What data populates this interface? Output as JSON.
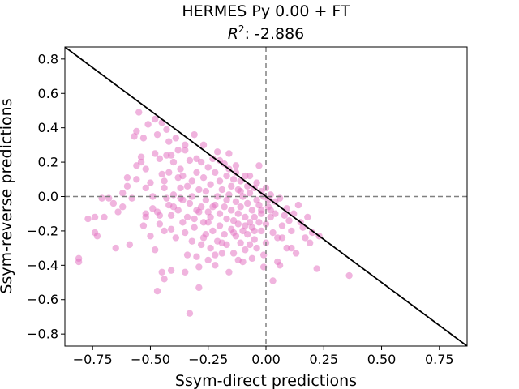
{
  "chart_data": {
    "type": "scatter",
    "title": "HERMES Py 0.00 + FT",
    "subtitle_prefix": "R",
    "subtitle_sup": "2",
    "subtitle_value": ": -2.886",
    "xlabel": "Ssym-direct predictions",
    "ylabel": "Ssym-reverse predictions",
    "xlim": [
      -0.87,
      0.87
    ],
    "ylim": [
      -0.87,
      0.87
    ],
    "xticks": [
      -0.75,
      -0.5,
      -0.25,
      0.0,
      0.25,
      0.5,
      0.75
    ],
    "xtick_labels": [
      "−0.75",
      "−0.50",
      "−0.25",
      "0.00",
      "0.25",
      "0.50",
      "0.75"
    ],
    "yticks": [
      -0.8,
      -0.6,
      -0.4,
      -0.2,
      0.0,
      0.2,
      0.4,
      0.6,
      0.8
    ],
    "ytick_labels": [
      "−0.8",
      "−0.6",
      "−0.4",
      "−0.2",
      "0.0",
      "0.2",
      "0.4",
      "0.6",
      "0.8"
    ],
    "grid": false,
    "reference_lines": {
      "diagonal": "y = -x",
      "vertical_dashed_x": 0,
      "horizontal_dashed_y": 0
    },
    "colors": {
      "points": "#e377c2",
      "diagonal": "#000000",
      "dashed": "#808080"
    },
    "points": [
      [
        -0.81,
        -0.36
      ],
      [
        -0.81,
        -0.38
      ],
      [
        -0.77,
        -0.13
      ],
      [
        -0.74,
        -0.12
      ],
      [
        -0.74,
        -0.21
      ],
      [
        -0.73,
        -0.23
      ],
      [
        -0.71,
        -0.01
      ],
      [
        -0.7,
        -0.12
      ],
      [
        -0.68,
        -0.01
      ],
      [
        -0.66,
        -0.04
      ],
      [
        -0.65,
        -0.3
      ],
      [
        -0.64,
        -0.09
      ],
      [
        -0.62,
        0.02
      ],
      [
        -0.62,
        -0.06
      ],
      [
        -0.6,
        0.06
      ],
      [
        -0.6,
        0.11
      ],
      [
        -0.59,
        -0.28
      ],
      [
        -0.58,
        -0.01
      ],
      [
        -0.57,
        0.35
      ],
      [
        -0.56,
        0.38
      ],
      [
        -0.56,
        0.18
      ],
      [
        -0.55,
        0.49
      ],
      [
        -0.54,
        0.2
      ],
      [
        -0.54,
        0.23
      ],
      [
        -0.53,
        0.34
      ],
      [
        -0.53,
        -0.17
      ],
      [
        -0.52,
        -0.1
      ],
      [
        -0.52,
        -0.12
      ],
      [
        -0.52,
        0.05
      ],
      [
        -0.51,
        0.42
      ],
      [
        -0.5,
        -0.23
      ],
      [
        -0.5,
        0.08
      ],
      [
        -0.49,
        0.0
      ],
      [
        -0.48,
        0.45
      ],
      [
        -0.48,
        -0.31
      ],
      [
        -0.47,
        -0.55
      ],
      [
        -0.47,
        0.36
      ],
      [
        -0.47,
        -0.09
      ],
      [
        -0.46,
        -0.11
      ],
      [
        -0.46,
        0.22
      ],
      [
        -0.45,
        0.43
      ],
      [
        -0.45,
        -0.44
      ],
      [
        -0.45,
        0.13
      ],
      [
        -0.44,
        0.05
      ],
      [
        -0.44,
        -0.48
      ],
      [
        -0.44,
        -0.2
      ],
      [
        -0.43,
        0.39
      ],
      [
        -0.43,
        -0.01
      ],
      [
        -0.42,
        0.32
      ],
      [
        -0.42,
        0.14
      ],
      [
        -0.42,
        -0.05
      ],
      [
        -0.41,
        -0.19
      ],
      [
        -0.41,
        -0.43
      ],
      [
        -0.41,
        0.24
      ],
      [
        -0.4,
        0.01
      ],
      [
        -0.4,
        -0.06
      ],
      [
        -0.4,
        0.2
      ],
      [
        -0.39,
        -0.24
      ],
      [
        -0.39,
        0.34
      ],
      [
        -0.38,
        0.27
      ],
      [
        -0.38,
        -0.08
      ],
      [
        -0.37,
        0.05
      ],
      [
        -0.37,
        -0.01
      ],
      [
        -0.37,
        0.16
      ],
      [
        -0.36,
        0.12
      ],
      [
        -0.36,
        -0.15
      ],
      [
        -0.35,
        -0.21
      ],
      [
        -0.35,
        0.3
      ],
      [
        -0.35,
        -0.44
      ],
      [
        -0.34,
        -0.12
      ],
      [
        -0.34,
        0.06
      ],
      [
        -0.34,
        -0.34
      ],
      [
        -0.33,
        -0.68
      ],
      [
        -0.33,
        0.21
      ],
      [
        -0.33,
        -0.04
      ],
      [
        -0.32,
        -0.26
      ],
      [
        -0.32,
        0.09
      ],
      [
        -0.32,
        0.0
      ],
      [
        -0.31,
        0.36
      ],
      [
        -0.31,
        -0.18
      ],
      [
        -0.3,
        -0.08
      ],
      [
        -0.3,
        -0.35
      ],
      [
        -0.3,
        0.14
      ],
      [
        -0.29,
        -0.41
      ],
      [
        -0.29,
        0.04
      ],
      [
        -0.29,
        -0.53
      ],
      [
        -0.28,
        0.2
      ],
      [
        -0.28,
        -0.28
      ],
      [
        -0.28,
        -0.06
      ],
      [
        -0.27,
        0.3
      ],
      [
        -0.27,
        -0.15
      ],
      [
        -0.27,
        0.11
      ],
      [
        -0.26,
        -0.02
      ],
      [
        -0.26,
        -0.22
      ],
      [
        -0.26,
        0.03
      ],
      [
        -0.25,
        -0.37
      ],
      [
        -0.25,
        0.17
      ],
      [
        -0.25,
        -0.09
      ],
      [
        -0.24,
        -0.3
      ],
      [
        -0.24,
        0.07
      ],
      [
        -0.24,
        -0.12
      ],
      [
        -0.23,
        -0.2
      ],
      [
        -0.23,
        0.22
      ],
      [
        -0.22,
        -0.05
      ],
      [
        -0.22,
        -0.4
      ],
      [
        -0.22,
        0.14
      ],
      [
        -0.21,
        0.0
      ],
      [
        -0.21,
        -0.26
      ],
      [
        -0.21,
        0.26
      ],
      [
        -0.2,
        -0.1
      ],
      [
        -0.2,
        0.09
      ],
      [
        -0.2,
        -0.17
      ],
      [
        -0.19,
        -0.33
      ],
      [
        -0.19,
        0.04
      ],
      [
        -0.18,
        -0.22
      ],
      [
        -0.18,
        0.19
      ],
      [
        -0.18,
        -0.06
      ],
      [
        -0.17,
        0.12
      ],
      [
        -0.17,
        -0.13
      ],
      [
        -0.17,
        -0.28
      ],
      [
        -0.16,
        0.01
      ],
      [
        -0.16,
        -0.44
      ],
      [
        -0.16,
        0.16
      ],
      [
        -0.15,
        -0.08
      ],
      [
        -0.15,
        -0.19
      ],
      [
        -0.15,
        0.06
      ],
      [
        -0.14,
        -0.14
      ],
      [
        -0.14,
        0.1
      ],
      [
        -0.14,
        -0.33
      ],
      [
        -0.13,
        -0.03
      ],
      [
        -0.13,
        -0.23
      ],
      [
        -0.13,
        0.14
      ],
      [
        -0.12,
        -0.1
      ],
      [
        -0.12,
        -0.16
      ],
      [
        -0.12,
        0.04
      ],
      [
        -0.11,
        -0.27
      ],
      [
        -0.11,
        0.09
      ],
      [
        -0.11,
        -0.06
      ],
      [
        -0.1,
        -0.38
      ],
      [
        -0.1,
        -0.2
      ],
      [
        -0.1,
        0.0
      ],
      [
        -0.09,
        -0.12
      ],
      [
        -0.09,
        0.12
      ],
      [
        -0.09,
        -0.31
      ],
      [
        -0.08,
        -0.04
      ],
      [
        -0.08,
        -0.22
      ],
      [
        -0.08,
        0.06
      ],
      [
        -0.07,
        -0.15
      ],
      [
        -0.07,
        -0.28
      ],
      [
        -0.07,
        0.02
      ],
      [
        -0.06,
        -0.08
      ],
      [
        -0.06,
        -0.36
      ],
      [
        -0.06,
        -0.18
      ],
      [
        -0.05,
        0.05
      ],
      [
        -0.05,
        -0.12
      ],
      [
        -0.05,
        -0.25
      ],
      [
        -0.04,
        -0.02
      ],
      [
        -0.04,
        -0.3
      ],
      [
        -0.04,
        0.08
      ],
      [
        -0.03,
        -0.15
      ],
      [
        -0.03,
        -0.05
      ],
      [
        -0.03,
        0.18
      ],
      [
        -0.02,
        -0.2
      ],
      [
        -0.02,
        0.03
      ],
      [
        -0.02,
        -0.1
      ],
      [
        -0.01,
        -0.41
      ],
      [
        -0.01,
        0.0
      ],
      [
        -0.01,
        -0.34
      ],
      [
        0.0,
        -0.27
      ],
      [
        0.0,
        0.05
      ],
      [
        0.0,
        -0.16
      ],
      [
        0.01,
        -0.06
      ],
      [
        0.01,
        -0.02
      ],
      [
        0.02,
        -0.12
      ],
      [
        0.02,
        0.01
      ],
      [
        0.03,
        -0.21
      ],
      [
        0.03,
        -0.49
      ],
      [
        0.04,
        -0.1
      ],
      [
        0.04,
        -0.03
      ],
      [
        0.05,
        -0.38
      ],
      [
        0.05,
        -0.24
      ],
      [
        0.06,
        -0.01
      ],
      [
        0.06,
        -0.4
      ],
      [
        0.07,
        -0.24
      ],
      [
        0.08,
        -0.11
      ],
      [
        0.09,
        -0.3
      ],
      [
        0.09,
        -0.07
      ],
      [
        0.1,
        -0.14
      ],
      [
        0.11,
        -0.2
      ],
      [
        0.11,
        -0.3
      ],
      [
        0.12,
        -0.1
      ],
      [
        0.13,
        -0.33
      ],
      [
        0.14,
        -0.05
      ],
      [
        0.15,
        -0.15
      ],
      [
        0.16,
        -0.18
      ],
      [
        0.17,
        -0.24
      ],
      [
        0.18,
        -0.12
      ],
      [
        0.19,
        -0.27
      ],
      [
        0.2,
        -0.21
      ],
      [
        0.22,
        -0.42
      ],
      [
        0.23,
        -0.23
      ],
      [
        0.36,
        -0.46
      ],
      [
        -0.35,
        0.27
      ],
      [
        -0.3,
        0.22
      ],
      [
        -0.43,
        0.24
      ],
      [
        -0.38,
        0.11
      ],
      [
        -0.2,
        0.21
      ],
      [
        -0.16,
        0.25
      ],
      [
        -0.48,
        0.25
      ],
      [
        -0.52,
        0.16
      ],
      [
        -0.56,
        0.1
      ],
      [
        -0.13,
        0.18
      ],
      [
        -0.07,
        0.12
      ],
      [
        -0.11,
        0.03
      ],
      [
        -0.17,
        -0.02
      ],
      [
        -0.23,
        -0.06
      ],
      [
        -0.29,
        -0.09
      ],
      [
        -0.36,
        -0.02
      ],
      [
        -0.41,
        -0.11
      ],
      [
        -0.46,
        -0.16
      ],
      [
        -0.49,
        -0.07
      ],
      [
        -0.44,
        0.09
      ],
      [
        -0.25,
        -0.15
      ],
      [
        -0.19,
        -0.27
      ],
      [
        -0.27,
        -0.24
      ],
      [
        -0.31,
        -0.13
      ],
      [
        -0.14,
        -0.21
      ],
      [
        -0.09,
        -0.17
      ],
      [
        -0.05,
        -0.2
      ],
      [
        -0.02,
        -0.08
      ],
      [
        0.02,
        -0.08
      ],
      [
        0.07,
        -0.17
      ],
      [
        -0.12,
        -0.37
      ],
      [
        -0.22,
        -0.34
      ]
    ]
  }
}
